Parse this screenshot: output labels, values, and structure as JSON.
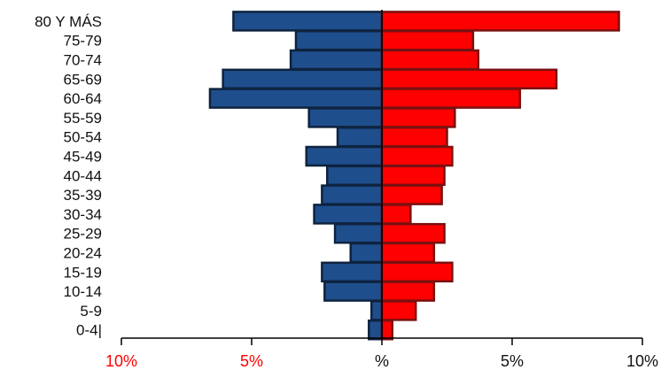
{
  "chart_data": {
    "type": "bar",
    "orientation": "horizontal",
    "layout": "population-pyramid",
    "categories": [
      "80 Y MÁS",
      "75-79",
      "70-74",
      "65-69",
      "60-64",
      "55-59",
      "50-54",
      "45-49",
      "40-44",
      "35-39",
      "30-34",
      "25-29",
      "20-24",
      "15-19",
      "10-14",
      "5-9",
      "0-4|"
    ],
    "series": [
      {
        "side": "left",
        "color": "#1f4e8c",
        "values": [
          5.7,
          3.3,
          3.5,
          6.1,
          6.6,
          2.8,
          1.7,
          2.9,
          2.1,
          2.3,
          2.6,
          1.8,
          1.2,
          2.3,
          2.2,
          0.4,
          0.5
        ]
      },
      {
        "side": "right",
        "color": "#ff0000",
        "values": [
          9.1,
          3.5,
          3.7,
          6.7,
          5.3,
          2.8,
          2.5,
          2.7,
          2.4,
          2.3,
          1.1,
          2.4,
          2.0,
          2.7,
          2.0,
          1.3,
          0.4
        ]
      }
    ],
    "x_ticks": [
      {
        "value": -10,
        "label": "10%",
        "color": "#ff0000"
      },
      {
        "value": -5,
        "label": "5%",
        "color": "#ff0000"
      },
      {
        "value": 0,
        "label": "%",
        "color": "#111111"
      },
      {
        "value": 5,
        "label": "5%",
        "color": "#111111"
      },
      {
        "value": 10,
        "label": "10%",
        "color": "#111111"
      }
    ],
    "xlim": [
      -10,
      10
    ],
    "grid": false,
    "legend": "none",
    "title": "",
    "xlabel": "",
    "ylabel": ""
  }
}
